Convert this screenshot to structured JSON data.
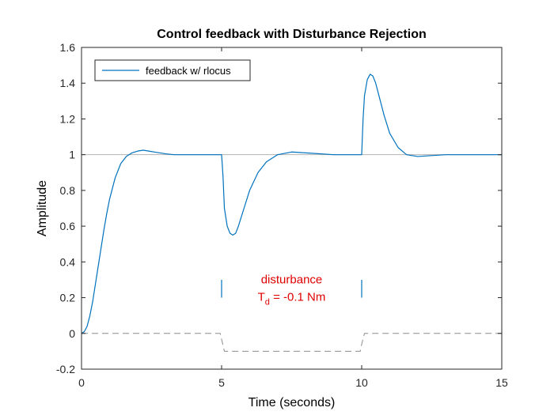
{
  "chart_data": {
    "type": "line",
    "title": "Control feedback with Disturbance Rejection",
    "xlabel": "Time (seconds)",
    "ylabel": "Amplitude",
    "xlim": [
      0,
      15
    ],
    "ylim": [
      -0.2,
      1.6
    ],
    "xticks": [
      0,
      5,
      10,
      15
    ],
    "yticks": [
      -0.2,
      0,
      0.2,
      0.4,
      0.6,
      0.8,
      1,
      1.2,
      1.4,
      1.6
    ],
    "ytick_labels": [
      "-0.2",
      "0",
      "0.2",
      "0.4",
      "0.6",
      "0.8",
      "1",
      "1.2",
      "1.4",
      "1.6"
    ],
    "xtick_labels": [
      "0",
      "5",
      "10",
      "15"
    ],
    "grid": false,
    "legend_position": "top-left",
    "series": [
      {
        "name": "feedback w/ rlocus",
        "color": "#0072bd",
        "style": "solid",
        "x": [
          0,
          0.1,
          0.2,
          0.3,
          0.4,
          0.5,
          0.6,
          0.7,
          0.8,
          0.9,
          1.0,
          1.2,
          1.4,
          1.6,
          1.8,
          2.0,
          2.2,
          2.4,
          2.6,
          2.8,
          3.0,
          3.3,
          3.6,
          4.0,
          4.5,
          5.0,
          5.05,
          5.1,
          5.2,
          5.3,
          5.4,
          5.5,
          5.6,
          5.8,
          6.0,
          6.3,
          6.6,
          7.0,
          7.5,
          8.0,
          9.0,
          10.0,
          10.05,
          10.1,
          10.2,
          10.3,
          10.4,
          10.5,
          10.6,
          10.8,
          11.0,
          11.3,
          11.6,
          12.0,
          12.5,
          13.0,
          14.0,
          15.0
        ],
        "y": [
          0,
          0.01,
          0.04,
          0.1,
          0.18,
          0.28,
          0.38,
          0.48,
          0.58,
          0.67,
          0.75,
          0.87,
          0.95,
          0.99,
          1.01,
          1.02,
          1.025,
          1.02,
          1.015,
          1.01,
          1.005,
          1.0,
          1.0,
          1.0,
          1.0,
          1.0,
          0.88,
          0.7,
          0.6,
          0.56,
          0.55,
          0.56,
          0.6,
          0.7,
          0.8,
          0.9,
          0.96,
          1.0,
          1.015,
          1.01,
          1.0,
          1.0,
          1.2,
          1.33,
          1.42,
          1.45,
          1.44,
          1.4,
          1.34,
          1.22,
          1.12,
          1.04,
          1.0,
          0.99,
          0.995,
          1.0,
          1.0,
          1.0
        ]
      },
      {
        "name": "",
        "color": "#8c8c8c",
        "style": "dashed",
        "x": [
          0,
          4.95,
          5.1,
          9.95,
          10.0,
          10.1,
          15
        ],
        "y": [
          0,
          0,
          -0.1,
          -0.1,
          -0.06,
          0,
          0
        ]
      },
      {
        "name": "",
        "color": "#b3b3b3",
        "style": "solid",
        "x": [
          0,
          15
        ],
        "y": [
          1,
          1
        ]
      }
    ],
    "markers": [
      {
        "x": 5,
        "y_from": 0.2,
        "y_to": 0.3,
        "color": "#0072bd"
      },
      {
        "x": 10,
        "y_from": 0.2,
        "y_to": 0.3,
        "color": "#0072bd"
      }
    ],
    "annotation": {
      "line1": "disturbance",
      "line2_prefix": "T",
      "line2_sub": "d",
      "line2_suffix": " = -0.1 Nm",
      "x": 7.5,
      "y": 0.28,
      "color": "#e00000"
    }
  }
}
